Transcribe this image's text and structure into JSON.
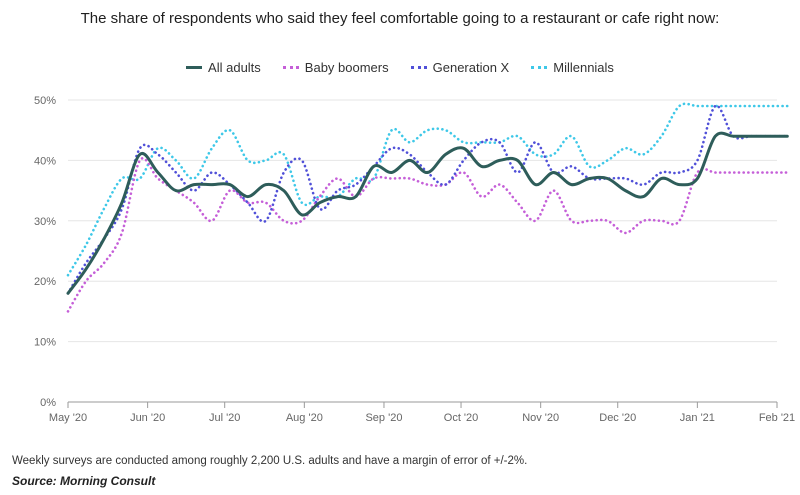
{
  "title": "The share of respondents who said they feel comfortable going to a restaurant or cafe right now:",
  "note": "Weekly surveys are conducted among roughly 2,200 U.S. adults and have a margin of error of +/-2%.",
  "source": "Source: Morning Consult",
  "chart_data": {
    "type": "line",
    "title": "The share of respondents who said they feel comfortable going to a restaurant or cafe right now:",
    "xlabel": "",
    "ylabel": "",
    "ylim": [
      0,
      50
    ],
    "yticks": [
      "0%",
      "10%",
      "20%",
      "30%",
      "40%",
      "50%"
    ],
    "xticks": [
      "May '20",
      "Jun '20",
      "Jul '20",
      "Aug '20",
      "Sep '20",
      "Oct '20",
      "Nov '20",
      "Dec '20",
      "Jan '21",
      "Feb '21"
    ],
    "grid": true,
    "legend_position": "top-center",
    "x": [
      "2020-05-01",
      "2020-05-08",
      "2020-05-15",
      "2020-05-22",
      "2020-05-29",
      "2020-06-05",
      "2020-06-12",
      "2020-06-19",
      "2020-06-26",
      "2020-07-03",
      "2020-07-10",
      "2020-07-17",
      "2020-07-24",
      "2020-07-31",
      "2020-08-07",
      "2020-08-14",
      "2020-08-21",
      "2020-08-28",
      "2020-09-04",
      "2020-09-11",
      "2020-09-18",
      "2020-09-25",
      "2020-10-02",
      "2020-10-09",
      "2020-10-16",
      "2020-10-23",
      "2020-10-30",
      "2020-11-06",
      "2020-11-13",
      "2020-11-20",
      "2020-11-27",
      "2020-12-04",
      "2020-12-11",
      "2020-12-18",
      "2020-12-25",
      "2021-01-01",
      "2021-01-08",
      "2021-01-15",
      "2021-01-22",
      "2021-01-29",
      "2021-02-05"
    ],
    "series": [
      {
        "name": "All adults",
        "color": "#2e5d5a",
        "style": "solid",
        "values": [
          18,
          22,
          27,
          33,
          41,
          38,
          35,
          36,
          36,
          36,
          34,
          36,
          35,
          31,
          33,
          34,
          34,
          39,
          38,
          40,
          38,
          41,
          42,
          39,
          40,
          40,
          36,
          38,
          36,
          37,
          37,
          35,
          34,
          37,
          36,
          37,
          44,
          44,
          44,
          44,
          44
        ]
      },
      {
        "name": "Baby boomers",
        "color": "#c55fd8",
        "style": "dotted",
        "values": [
          15,
          20,
          23,
          28,
          40,
          37,
          35,
          33,
          30,
          35,
          33,
          33,
          30,
          30,
          34,
          37,
          34,
          37,
          37,
          37,
          36,
          36,
          38,
          34,
          36,
          33,
          30,
          35,
          30,
          30,
          30,
          28,
          30,
          30,
          30,
          38,
          38,
          38,
          38,
          38,
          38
        ]
      },
      {
        "name": "Generation X",
        "color": "#5050d8",
        "style": "dotted",
        "values": [
          18,
          23,
          27,
          32,
          42,
          41,
          38,
          35,
          38,
          36,
          33,
          30,
          38,
          40,
          32,
          35,
          36,
          39,
          42,
          41,
          38,
          36,
          40,
          43,
          43,
          38,
          43,
          38,
          39,
          37,
          37,
          37,
          36,
          38,
          38,
          40,
          49,
          44,
          44,
          44,
          44
        ]
      },
      {
        "name": "Millennials",
        "color": "#3ec8e8",
        "style": "dotted",
        "values": [
          21,
          26,
          32,
          37,
          37,
          42,
          40,
          37,
          42,
          45,
          40,
          40,
          41,
          33,
          34,
          34,
          37,
          37,
          45,
          43,
          45,
          45,
          43,
          43,
          43,
          44,
          41,
          41,
          44,
          39,
          40,
          42,
          41,
          44,
          49,
          49,
          49,
          49,
          49,
          49,
          49
        ]
      }
    ]
  }
}
